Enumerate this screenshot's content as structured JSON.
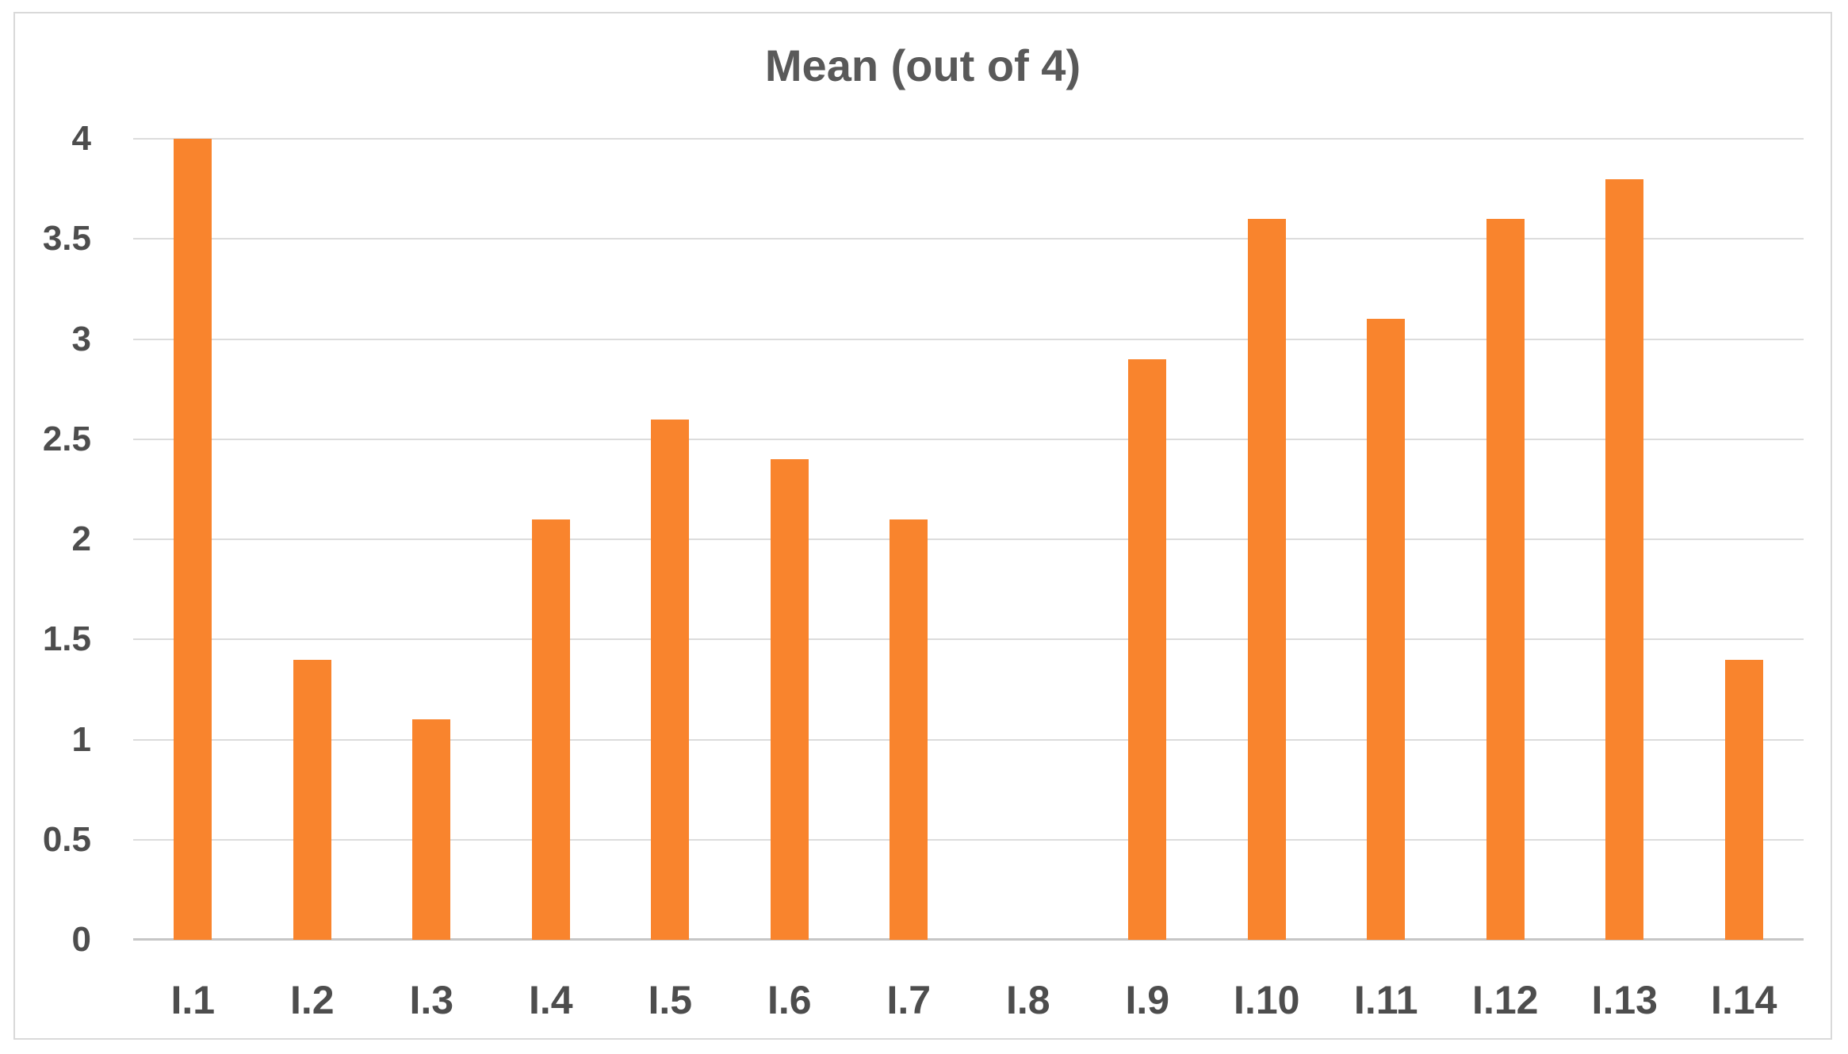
{
  "colors": {
    "bar": "#f9842d",
    "gridline": "#dcdcdc",
    "axis_line": "#c6c6c6",
    "title_text": "#595959",
    "axis_label_text": "#4d4d4d",
    "frame_border": "#d9d9d9",
    "background": "#ffffff"
  },
  "chart_data": {
    "type": "bar",
    "title": "Mean (out of 4)",
    "categories": [
      "I.1",
      "I.2",
      "I.3",
      "I.4",
      "I.5",
      "I.6",
      "I.7",
      "I.8",
      "I.9",
      "I.10",
      "I.11",
      "I.12",
      "I.13",
      "I.14"
    ],
    "values": [
      4.0,
      1.4,
      1.1,
      2.1,
      2.6,
      2.4,
      2.1,
      0,
      2.9,
      3.6,
      3.1,
      3.6,
      3.8,
      1.4
    ],
    "series_name": "Mean",
    "xlabel": "",
    "ylabel": "",
    "ylim": [
      0,
      4
    ],
    "ytick_step": 0.5,
    "ytick_labels": [
      "0",
      "0.5",
      "1",
      "1.5",
      "2",
      "2.5",
      "3",
      "3.5",
      "4"
    ],
    "grid": true,
    "legend_position": "none",
    "bar_color_hex": "#f9842d"
  }
}
